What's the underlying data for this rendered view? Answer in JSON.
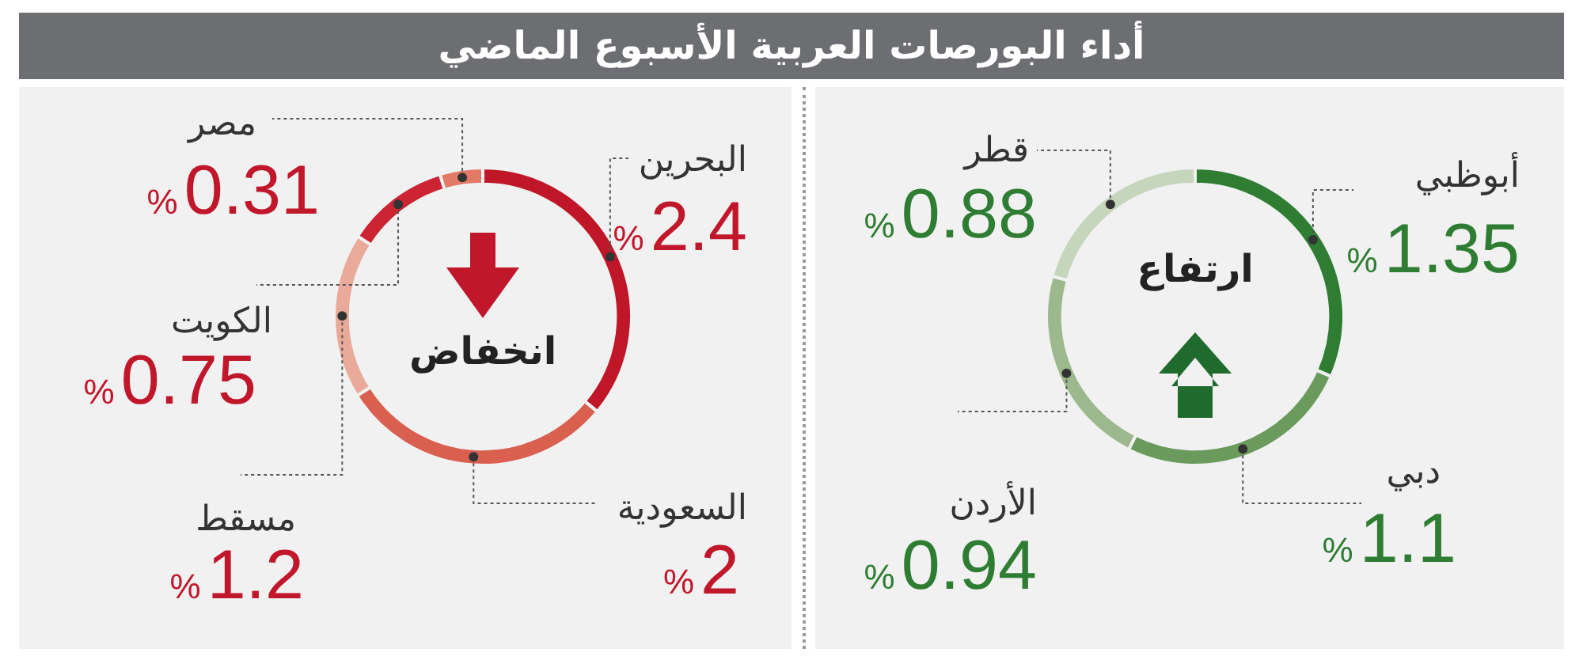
{
  "chart_data": [
    {
      "type": "donut",
      "title": "أداء البورصات العربية الأسبوع الماضي",
      "categories": [
        "البحرين",
        "السعودية",
        "مسقط",
        "الكويت",
        "مصر"
      ],
      "values": [
        2.4,
        2,
        1.2,
        0.75,
        0.31
      ],
      "colors": [
        "#bf1728",
        "#d9604f",
        "#e9aa9a",
        "#cc2433",
        "#e37a66"
      ],
      "value_labels": [
        "2.4%",
        "2%",
        "1.2%",
        "0.75%",
        "0.31%"
      ],
      "annotations": [
        "انخفاض"
      ]
    },
    {
      "type": "donut",
      "categories": [
        "أبوظبي",
        "دبي",
        "الأردن",
        "قطر"
      ],
      "values": [
        1.35,
        1.1,
        0.94,
        0.88
      ],
      "colors": [
        "#2e7d32",
        "#6a9a5c",
        "#9bb98d",
        "#c5d6bd"
      ],
      "value_labels": [
        "1.35%",
        "1.1%",
        "0.94%",
        "0.88%"
      ],
      "annotations": [
        "ارتفاع"
      ]
    }
  ]
}
